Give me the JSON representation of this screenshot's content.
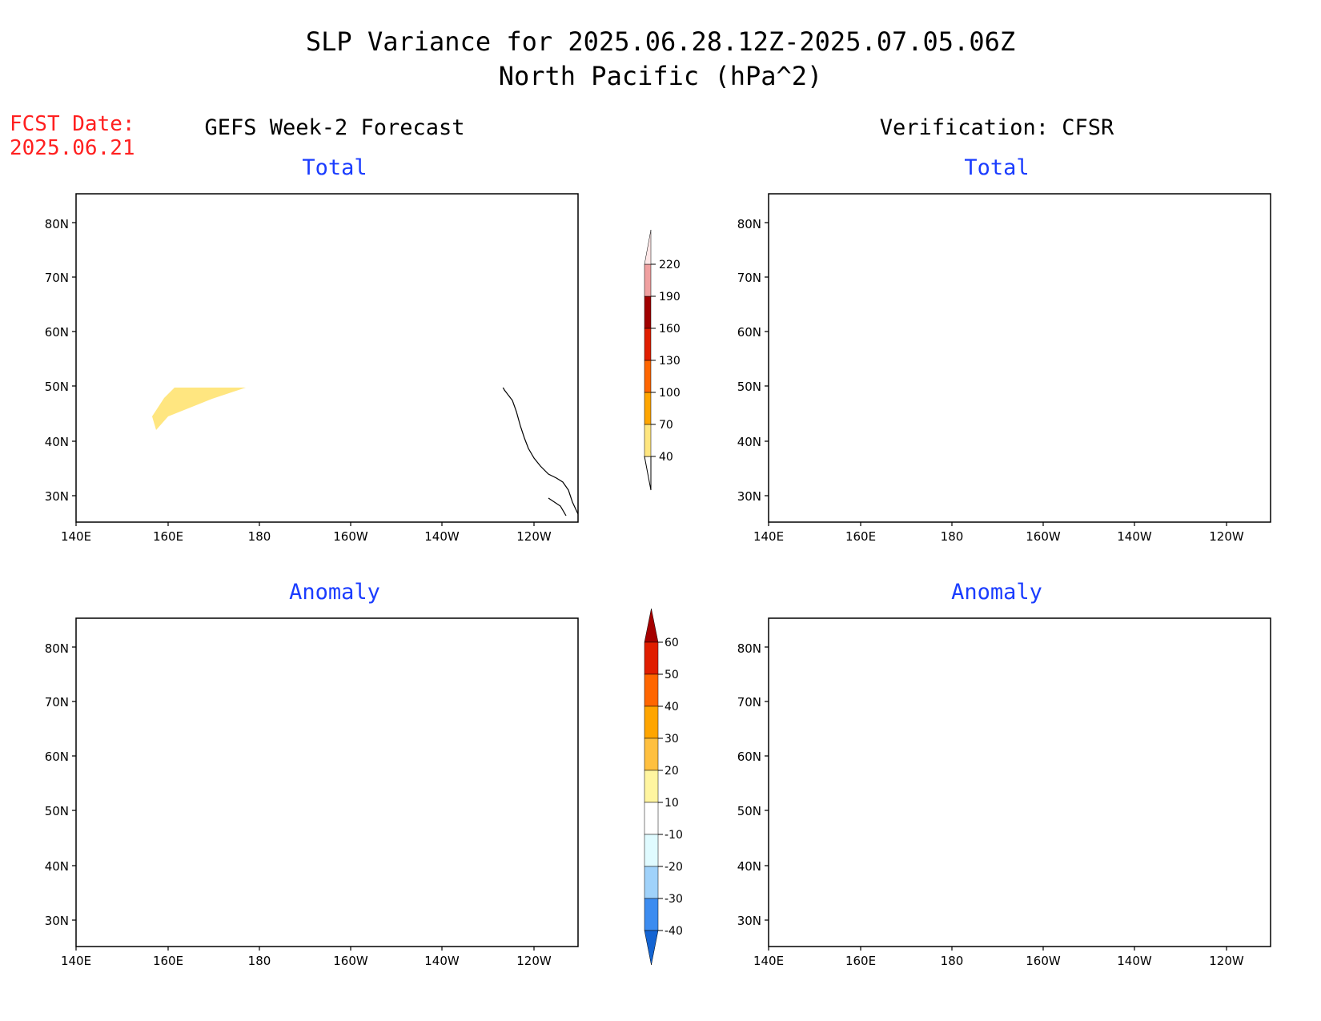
{
  "title_line1": "SLP Variance for 2025.06.28.12Z-2025.07.05.06Z",
  "title_line2": "North Pacific (hPa^2)",
  "fcst_label": "FCST Date:",
  "fcst_date": "2025.06.21",
  "left_header": "GEFS Week-2 Forecast",
  "right_header": "Verification: CFSR",
  "panels": [
    {
      "id": "gefs-total",
      "subtitle": "Total"
    },
    {
      "id": "cfsr-total",
      "subtitle": "Total"
    },
    {
      "id": "gefs-anomaly",
      "subtitle": "Anomaly"
    },
    {
      "id": "cfsr-anomaly",
      "subtitle": "Anomaly"
    }
  ],
  "lon_ticks": [
    "140E",
    "160E",
    "180",
    "160W",
    "140W",
    "120W"
  ],
  "lat_ticks": [
    "80N",
    "70N",
    "60N",
    "50N",
    "40N",
    "30N"
  ],
  "total_colorbar": {
    "levels": [
      "40",
      "70",
      "100",
      "130",
      "160",
      "190",
      "220"
    ],
    "colors": [
      "#ffe680",
      "#ffa500",
      "#ff6600",
      "#e01e00",
      "#a00000",
      "#f0a0a0",
      "#fde6e6",
      "#fff5f5"
    ]
  },
  "anomaly_colorbar": {
    "levels": [
      "60",
      "50",
      "40",
      "30",
      "20",
      "10",
      "-10",
      "-20",
      "-30",
      "-40"
    ],
    "colors": [
      "#a50000",
      "#e01e00",
      "#ff6600",
      "#ffa500",
      "#ffc040",
      "#fff5a0",
      "#ffffff",
      "#e0fbff",
      "#a0d2fa",
      "#3c8cf0",
      "#1464d2"
    ]
  },
  "palette": {
    "total_40_70": "#ffe680",
    "total_70_100": "#ffa500",
    "anom_10_20": "#fff5a0",
    "anom_20_30": "#ffc040",
    "anom_30_40": "#ffa500",
    "anom_40_50": "#ff6600",
    "anom_neg_10_20": "#e0fbff",
    "anom_neg_20_30": "#a0d2fa",
    "anom_neg_30_40": "#3c8cf0",
    "title_red": "#ff2020",
    "subtitle_blue": "#1a3cff"
  }
}
